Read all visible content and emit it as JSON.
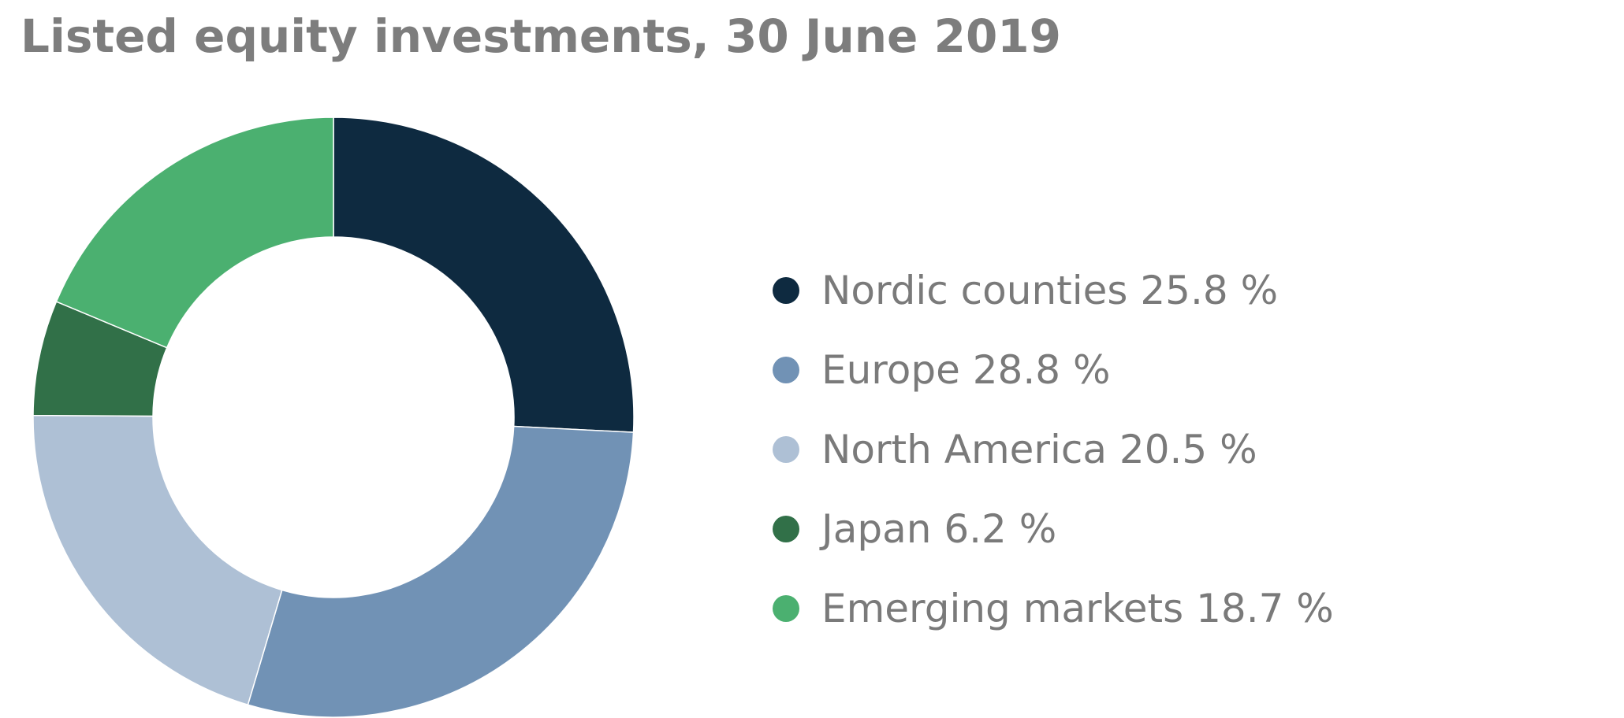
{
  "chart_data": {
    "type": "pie",
    "title": "Listed equity investments, 30 June 2019",
    "donut": true,
    "legend_position": "right",
    "categories": [
      "Nordic counties",
      "Europe",
      "North America",
      "Japan",
      "Emerging markets"
    ],
    "values": [
      25.8,
      28.8,
      20.5,
      6.2,
      18.7
    ],
    "unit": "%",
    "colors": [
      "#0e2a40",
      "#7192b5",
      "#aec0d5",
      "#317048",
      "#4bb070"
    ],
    "legend_labels": [
      "Nordic counties 25.8 %",
      "Europe 28.8 %",
      "North America 20.5 %",
      "Japan 6.2 %",
      "Emerging markets 18.7 %"
    ]
  }
}
